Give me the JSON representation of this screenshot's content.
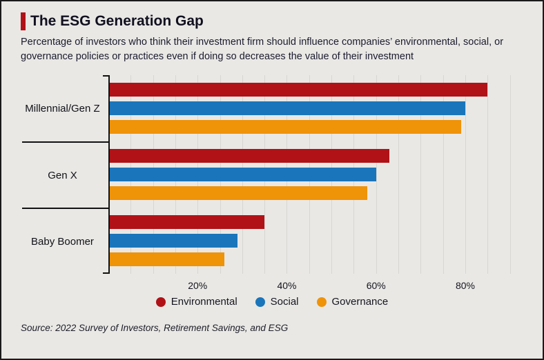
{
  "header": {
    "title": "The ESG Generation Gap",
    "subtitle": "Percentage of investors who think their investment firm should influence companies’ environmental, social, or governance policies or practices even if doing so decreases the value of their investment"
  },
  "chart_data": {
    "type": "bar",
    "orientation": "horizontal",
    "title": "The ESG Generation Gap",
    "categories": [
      "Millennial/Gen Z",
      "Gen X",
      "Baby Boomer"
    ],
    "series": [
      {
        "name": "Environmental",
        "color": "#b01217",
        "values": [
          85,
          63,
          35
        ]
      },
      {
        "name": "Social",
        "color": "#1a75ba",
        "values": [
          80,
          60,
          29
        ]
      },
      {
        "name": "Governance",
        "color": "#ef9309",
        "values": [
          79,
          58,
          26
        ]
      }
    ],
    "xlim": [
      0,
      93
    ],
    "ticks": [
      {
        "value": 20,
        "label": "20%"
      },
      {
        "value": 40,
        "label": "40%"
      },
      {
        "value": 60,
        "label": "60%"
      },
      {
        "value": 80,
        "label": "80%"
      }
    ],
    "grid": {
      "interval": 5,
      "max": 90,
      "on": true
    },
    "legend_position": "bottom"
  },
  "footer": {
    "source": "Source: 2022 Survey of Investors, Retirement Savings, and ESG"
  }
}
